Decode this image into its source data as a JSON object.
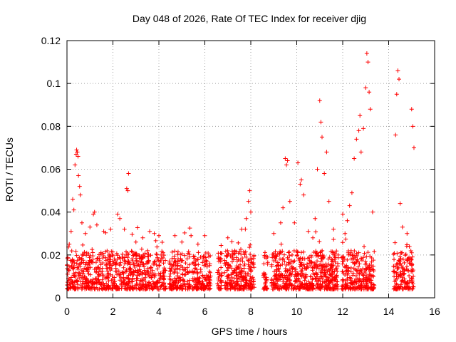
{
  "chart_data": {
    "type": "scatter",
    "title": "Day 048 of 2026, Rate Of TEC Index for receiver djig",
    "xlabel": "GPS time / hours",
    "ylabel": "ROTI / TECUs",
    "xlim": [
      0,
      16
    ],
    "ylim": [
      0,
      0.12
    ],
    "xticks": [
      0,
      2,
      4,
      6,
      8,
      10,
      12,
      14,
      16
    ],
    "xtick_labels": [
      "0",
      "2",
      "4",
      "6",
      "8",
      "10",
      "12",
      "14",
      "16"
    ],
    "yticks": [
      0,
      0.02,
      0.04,
      0.06,
      0.08,
      0.1,
      0.12
    ],
    "ytick_labels": [
      "0",
      "0.02",
      "0.04",
      "0.06",
      "0.08",
      "0.1",
      "0.12"
    ],
    "grid": true,
    "marker": "+",
    "marker_color": "#ff0000",
    "series": [
      {
        "name": "ROTI",
        "description": "dense band of points roughly 0.003-0.02 TECU/min between 0 and 15.1 h with scattered spikes",
        "points": [
          [
            0.1,
            0.025
          ],
          [
            0.18,
            0.031
          ],
          [
            0.25,
            0.046
          ],
          [
            0.3,
            0.041
          ],
          [
            0.35,
            0.062
          ],
          [
            0.4,
            0.067
          ],
          [
            0.42,
            0.069
          ],
          [
            0.45,
            0.068
          ],
          [
            0.48,
            0.066
          ],
          [
            0.5,
            0.057
          ],
          [
            0.55,
            0.052
          ],
          [
            0.58,
            0.048
          ],
          [
            0.65,
            0.035
          ],
          [
            0.8,
            0.03
          ],
          [
            1.0,
            0.033
          ],
          [
            1.15,
            0.039
          ],
          [
            1.2,
            0.04
          ],
          [
            1.3,
            0.034
          ],
          [
            1.6,
            0.031
          ],
          [
            1.9,
            0.032
          ],
          [
            2.2,
            0.039
          ],
          [
            2.3,
            0.037
          ],
          [
            2.5,
            0.032
          ],
          [
            2.6,
            0.051
          ],
          [
            2.65,
            0.05
          ],
          [
            2.68,
            0.058
          ],
          [
            3.0,
            0.026
          ],
          [
            3.3,
            0.028
          ],
          [
            3.6,
            0.031
          ],
          [
            3.8,
            0.03
          ],
          [
            4.0,
            0.029
          ],
          [
            4.7,
            0.029
          ],
          [
            5.0,
            0.026
          ],
          [
            5.4,
            0.029
          ],
          [
            5.7,
            0.025
          ],
          [
            6.0,
            0.029
          ],
          [
            6.6,
            0.019
          ],
          [
            7.0,
            0.028
          ],
          [
            7.3,
            0.022
          ],
          [
            7.6,
            0.032
          ],
          [
            7.8,
            0.037
          ],
          [
            7.9,
            0.045
          ],
          [
            7.95,
            0.05
          ],
          [
            8.0,
            0.04
          ],
          [
            8.6,
            0.019
          ],
          [
            9.0,
            0.03
          ],
          [
            9.3,
            0.035
          ],
          [
            9.4,
            0.042
          ],
          [
            9.5,
            0.065
          ],
          [
            9.55,
            0.062
          ],
          [
            9.6,
            0.064
          ],
          [
            9.7,
            0.045
          ],
          [
            9.9,
            0.035
          ],
          [
            10.05,
            0.063
          ],
          [
            10.15,
            0.053
          ],
          [
            10.2,
            0.055
          ],
          [
            10.3,
            0.048
          ],
          [
            10.5,
            0.031
          ],
          [
            10.7,
            0.028
          ],
          [
            10.8,
            0.037
          ],
          [
            10.9,
            0.06
          ],
          [
            11.0,
            0.092
          ],
          [
            11.05,
            0.082
          ],
          [
            11.1,
            0.075
          ],
          [
            11.2,
            0.058
          ],
          [
            11.3,
            0.068
          ],
          [
            11.4,
            0.045
          ],
          [
            11.6,
            0.032
          ],
          [
            11.8,
            0.02
          ],
          [
            12.0,
            0.039
          ],
          [
            12.1,
            0.03
          ],
          [
            12.2,
            0.036
          ],
          [
            12.3,
            0.043
          ],
          [
            12.4,
            0.049
          ],
          [
            12.5,
            0.065
          ],
          [
            12.6,
            0.074
          ],
          [
            12.7,
            0.078
          ],
          [
            12.75,
            0.085
          ],
          [
            12.8,
            0.068
          ],
          [
            12.9,
            0.079
          ],
          [
            13.0,
            0.098
          ],
          [
            13.05,
            0.114
          ],
          [
            13.1,
            0.11
          ],
          [
            13.15,
            0.096
          ],
          [
            13.2,
            0.088
          ],
          [
            13.3,
            0.04
          ],
          [
            14.3,
            0.076
          ],
          [
            14.35,
            0.095
          ],
          [
            14.4,
            0.106
          ],
          [
            14.45,
            0.102
          ],
          [
            14.5,
            0.044
          ],
          [
            14.6,
            0.033
          ],
          [
            14.8,
            0.03
          ],
          [
            15.0,
            0.088
          ],
          [
            15.05,
            0.08
          ],
          [
            15.1,
            0.07
          ]
        ]
      }
    ]
  }
}
